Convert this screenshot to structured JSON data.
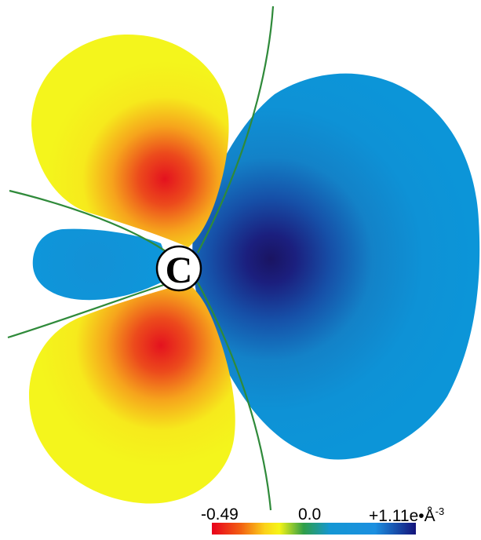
{
  "atom": {
    "label": "C"
  },
  "colorbar": {
    "min_label": "-0.49",
    "mid_label": "0.0",
    "max_label": "+1.11e•Å",
    "max_exponent": "-3",
    "min_value": -0.49,
    "mid_value": 0.0,
    "max_value": 1.11,
    "stops": [
      "#e8001c",
      "#f25f12",
      "#fbd31a",
      "#f6f516",
      "#2f9e48",
      "#1497d4",
      "#1b8fe0",
      "#14137a"
    ]
  },
  "colors": {
    "negative_lobe": "#f2f21c",
    "negative_core": "#e3101e",
    "positive_lobe": "#0d93d8",
    "positive_core": "#1c1667",
    "node_line": "#2f8a3a",
    "atom_fill": "#ffffff"
  }
}
